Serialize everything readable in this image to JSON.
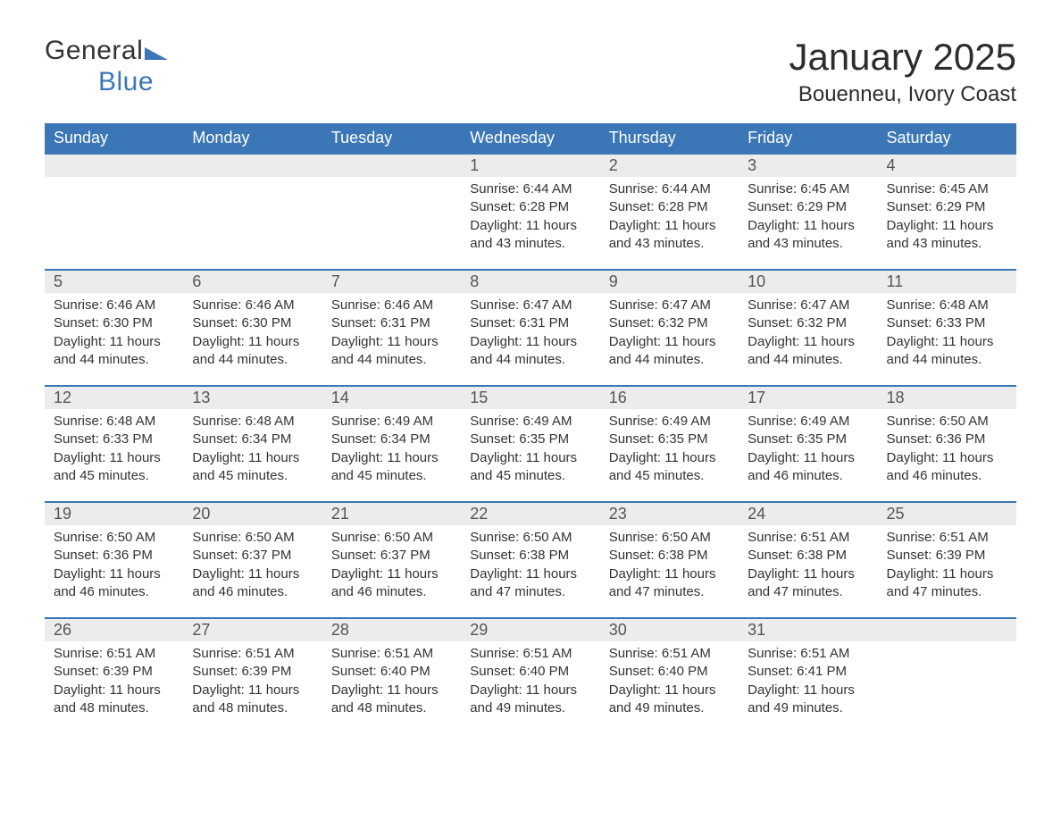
{
  "brand": {
    "part1": "General",
    "part2": "Blue"
  },
  "title": "January 2025",
  "location": "Bouenneu, Ivory Coast",
  "colors": {
    "header_bg": "#3b77b7",
    "header_text": "#ffffff",
    "daynum_bg": "#ececec",
    "daynum_border": "#3b77b7",
    "body_bg": "#ffffff",
    "text": "#333333",
    "brand_blue": "#3b77b7",
    "brand_dark": "#333333"
  },
  "typography": {
    "title_fontsize": 42,
    "location_fontsize": 24,
    "header_fontsize": 18,
    "daynum_fontsize": 18,
    "body_fontsize": 15,
    "weight_regular": 400
  },
  "layout": {
    "start_day_index": 3,
    "columns": 7
  },
  "weekdays": [
    "Sunday",
    "Monday",
    "Tuesday",
    "Wednesday",
    "Thursday",
    "Friday",
    "Saturday"
  ],
  "days": [
    {
      "n": 1,
      "sunrise": "6:44 AM",
      "sunset": "6:28 PM",
      "daylight": "11 hours and 43 minutes."
    },
    {
      "n": 2,
      "sunrise": "6:44 AM",
      "sunset": "6:28 PM",
      "daylight": "11 hours and 43 minutes."
    },
    {
      "n": 3,
      "sunrise": "6:45 AM",
      "sunset": "6:29 PM",
      "daylight": "11 hours and 43 minutes."
    },
    {
      "n": 4,
      "sunrise": "6:45 AM",
      "sunset": "6:29 PM",
      "daylight": "11 hours and 43 minutes."
    },
    {
      "n": 5,
      "sunrise": "6:46 AM",
      "sunset": "6:30 PM",
      "daylight": "11 hours and 44 minutes."
    },
    {
      "n": 6,
      "sunrise": "6:46 AM",
      "sunset": "6:30 PM",
      "daylight": "11 hours and 44 minutes."
    },
    {
      "n": 7,
      "sunrise": "6:46 AM",
      "sunset": "6:31 PM",
      "daylight": "11 hours and 44 minutes."
    },
    {
      "n": 8,
      "sunrise": "6:47 AM",
      "sunset": "6:31 PM",
      "daylight": "11 hours and 44 minutes."
    },
    {
      "n": 9,
      "sunrise": "6:47 AM",
      "sunset": "6:32 PM",
      "daylight": "11 hours and 44 minutes."
    },
    {
      "n": 10,
      "sunrise": "6:47 AM",
      "sunset": "6:32 PM",
      "daylight": "11 hours and 44 minutes."
    },
    {
      "n": 11,
      "sunrise": "6:48 AM",
      "sunset": "6:33 PM",
      "daylight": "11 hours and 44 minutes."
    },
    {
      "n": 12,
      "sunrise": "6:48 AM",
      "sunset": "6:33 PM",
      "daylight": "11 hours and 45 minutes."
    },
    {
      "n": 13,
      "sunrise": "6:48 AM",
      "sunset": "6:34 PM",
      "daylight": "11 hours and 45 minutes."
    },
    {
      "n": 14,
      "sunrise": "6:49 AM",
      "sunset": "6:34 PM",
      "daylight": "11 hours and 45 minutes."
    },
    {
      "n": 15,
      "sunrise": "6:49 AM",
      "sunset": "6:35 PM",
      "daylight": "11 hours and 45 minutes."
    },
    {
      "n": 16,
      "sunrise": "6:49 AM",
      "sunset": "6:35 PM",
      "daylight": "11 hours and 45 minutes."
    },
    {
      "n": 17,
      "sunrise": "6:49 AM",
      "sunset": "6:35 PM",
      "daylight": "11 hours and 46 minutes."
    },
    {
      "n": 18,
      "sunrise": "6:50 AM",
      "sunset": "6:36 PM",
      "daylight": "11 hours and 46 minutes."
    },
    {
      "n": 19,
      "sunrise": "6:50 AM",
      "sunset": "6:36 PM",
      "daylight": "11 hours and 46 minutes."
    },
    {
      "n": 20,
      "sunrise": "6:50 AM",
      "sunset": "6:37 PM",
      "daylight": "11 hours and 46 minutes."
    },
    {
      "n": 21,
      "sunrise": "6:50 AM",
      "sunset": "6:37 PM",
      "daylight": "11 hours and 46 minutes."
    },
    {
      "n": 22,
      "sunrise": "6:50 AM",
      "sunset": "6:38 PM",
      "daylight": "11 hours and 47 minutes."
    },
    {
      "n": 23,
      "sunrise": "6:50 AM",
      "sunset": "6:38 PM",
      "daylight": "11 hours and 47 minutes."
    },
    {
      "n": 24,
      "sunrise": "6:51 AM",
      "sunset": "6:38 PM",
      "daylight": "11 hours and 47 minutes."
    },
    {
      "n": 25,
      "sunrise": "6:51 AM",
      "sunset": "6:39 PM",
      "daylight": "11 hours and 47 minutes."
    },
    {
      "n": 26,
      "sunrise": "6:51 AM",
      "sunset": "6:39 PM",
      "daylight": "11 hours and 48 minutes."
    },
    {
      "n": 27,
      "sunrise": "6:51 AM",
      "sunset": "6:39 PM",
      "daylight": "11 hours and 48 minutes."
    },
    {
      "n": 28,
      "sunrise": "6:51 AM",
      "sunset": "6:40 PM",
      "daylight": "11 hours and 48 minutes."
    },
    {
      "n": 29,
      "sunrise": "6:51 AM",
      "sunset": "6:40 PM",
      "daylight": "11 hours and 49 minutes."
    },
    {
      "n": 30,
      "sunrise": "6:51 AM",
      "sunset": "6:40 PM",
      "daylight": "11 hours and 49 minutes."
    },
    {
      "n": 31,
      "sunrise": "6:51 AM",
      "sunset": "6:41 PM",
      "daylight": "11 hours and 49 minutes."
    }
  ],
  "labels": {
    "sunrise": "Sunrise: ",
    "sunset": "Sunset: ",
    "daylight": "Daylight: "
  }
}
